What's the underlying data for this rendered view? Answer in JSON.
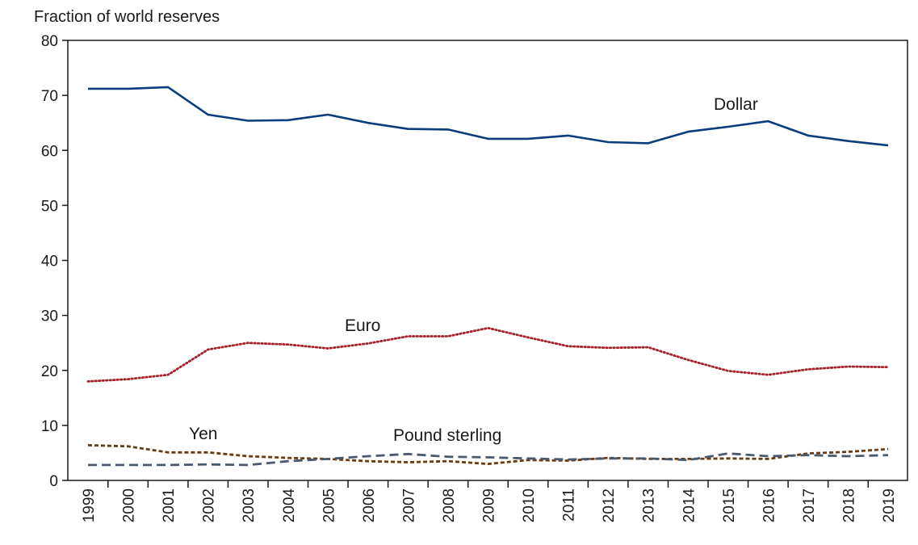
{
  "chart_data": {
    "type": "line",
    "ylabel": "Fraction of world reserves",
    "ylim": [
      0,
      80
    ],
    "yticks": [
      0,
      10,
      20,
      30,
      40,
      50,
      60,
      70,
      80
    ],
    "x": [
      "1999",
      "2000",
      "2001",
      "2002",
      "2003",
      "2004",
      "2005",
      "2006",
      "2007",
      "2008",
      "2009",
      "2010",
      "2011",
      "2012",
      "2013",
      "2014",
      "2015",
      "2016",
      "2017",
      "2018",
      "2019"
    ],
    "grid": false,
    "series": [
      {
        "name": "Dollar",
        "color": "#0b3c7d",
        "style": "solid",
        "values": [
          71.2,
          71.2,
          71.5,
          66.5,
          65.4,
          65.5,
          66.5,
          65.0,
          63.9,
          63.8,
          62.1,
          62.1,
          62.7,
          61.5,
          61.3,
          63.4,
          64.3,
          65.3,
          62.7,
          61.7,
          60.9
        ]
      },
      {
        "name": "Euro",
        "color": "#a3222b",
        "style": "dotted",
        "values": [
          18.0,
          18.4,
          19.2,
          23.8,
          25.0,
          24.7,
          24.0,
          24.9,
          26.2,
          26.2,
          27.7,
          26.0,
          24.4,
          24.1,
          24.2,
          21.9,
          19.9,
          19.2,
          20.2,
          20.7,
          20.6
        ]
      },
      {
        "name": "Yen",
        "color": "#6b3a10",
        "style": "dashed-fine",
        "values": [
          6.4,
          6.2,
          5.1,
          5.1,
          4.4,
          4.1,
          3.9,
          3.5,
          3.3,
          3.5,
          3.0,
          3.7,
          3.6,
          4.1,
          3.9,
          3.9,
          4.0,
          3.9,
          4.9,
          5.2,
          5.7
        ]
      },
      {
        "name": "Pound sterling",
        "color": "#4a5a6e",
        "style": "dashed",
        "values": [
          2.8,
          2.8,
          2.8,
          2.9,
          2.8,
          3.5,
          3.9,
          4.4,
          4.8,
          4.3,
          4.2,
          4.0,
          3.8,
          4.0,
          4.0,
          3.7,
          4.9,
          4.4,
          4.6,
          4.4,
          4.6
        ]
      }
    ]
  }
}
